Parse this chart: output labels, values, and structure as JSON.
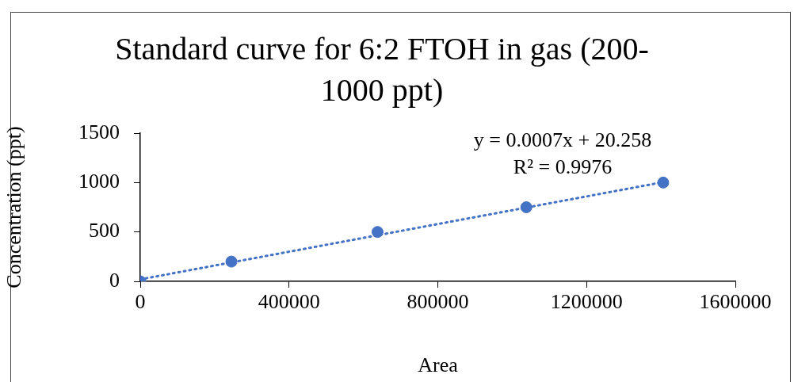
{
  "chart_data": {
    "type": "scatter",
    "title": "Standard curve for 6:2 FTOH in gas (200-1000 ppt)",
    "xlabel": "Area",
    "ylabel": "Concentration (ppt)",
    "x": [
      0,
      245000,
      638000,
      1038000,
      1406000
    ],
    "series": [
      {
        "type": "scatter",
        "color": "#4472c4",
        "values": [
          0,
          200,
          500,
          750,
          1000
        ],
        "marker": "circle"
      },
      {
        "type": "line",
        "x": [
          0,
          1406000
        ],
        "values": [
          20,
          1004
        ],
        "color": "#4472c4",
        "line_style": "dotted"
      }
    ],
    "xlim": [
      0,
      1600000
    ],
    "xticks": [
      0,
      400000,
      800000,
      1200000,
      1600000
    ],
    "ylim": [
      0,
      1500
    ],
    "yticks": [
      0,
      500,
      1000,
      1500
    ],
    "grid": false,
    "legend": false,
    "annotations": [
      "y = 0.0007x + 20.258",
      "R² = 0.9976"
    ]
  }
}
